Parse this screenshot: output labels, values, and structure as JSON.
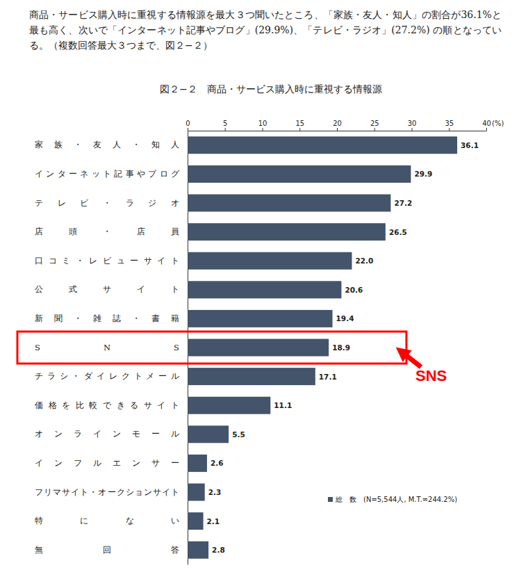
{
  "chart_data": {
    "type": "bar",
    "orientation": "horizontal",
    "title": "図２−２　商品・サービス購入時に重視する情報源",
    "xlabel": "(%)",
    "categories": [
      "家族・友人・知人",
      "インターネット記事やブログ",
      "テレビ・ラジオ",
      "店頭・店員",
      "口コミ・レビューサイト",
      "公式サイト",
      "新聞・雑誌・書籍",
      "SNS",
      "チラシ・ダイレクトメール",
      "価格を比較できるサイト",
      "オンラインモール",
      "インフルエンサー",
      "フリマサイト・オークションサイト",
      "特にない",
      "無回答"
    ],
    "series": [
      {
        "name": "総　数　(N=5,544人, M.T.=244.2%)",
        "color": "#44546a",
        "values": [
          36.1,
          29.9,
          27.2,
          26.5,
          22.0,
          20.6,
          19.4,
          18.9,
          17.1,
          11.1,
          5.5,
          2.6,
          2.3,
          2.1,
          2.8
        ],
        "value_labels": [
          "36.1",
          "29.9",
          "27.2",
          "26.5",
          "22.0",
          "20.6",
          "19.4",
          "18.9",
          "17.1",
          "11.1",
          "5.5",
          "2.6",
          "2.3",
          "2.1",
          "2.8"
        ]
      }
    ],
    "xlim": [
      0,
      40
    ],
    "xticks": [
      0,
      5,
      10,
      15,
      20,
      25,
      30,
      35,
      40
    ],
    "grid": false,
    "data_labels": true,
    "legend": "lower right",
    "annotations": [
      {
        "text": "商品・サービス購入時に重視する情報源を最大３つ聞いたところ、「家族・友人・知人」の割合が36.1%と最も高く、次いで「インターネット記事やブログ」(29.9%)、「テレビ・ラジオ」(27.2%) の順となっている。（複数回答最大３つまで、図２−２）"
      },
      {
        "text": "SNS",
        "category": "SNS"
      }
    ]
  }
}
